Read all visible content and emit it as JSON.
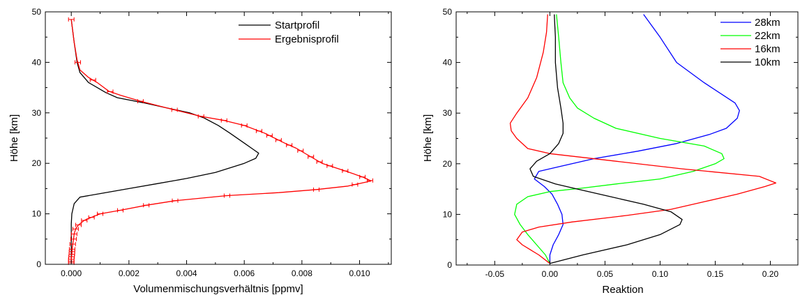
{
  "chart_data": [
    {
      "type": "line",
      "xlabel": "Volumenmischungsverhältnis [ppmv]",
      "ylabel": "Höhe [km]",
      "xlim": [
        -0.0009,
        0.0111
      ],
      "ylim": [
        0,
        50
      ],
      "xticks": [
        "0.000",
        "0.002",
        "0.004",
        "0.006",
        "0.008",
        "0.010"
      ],
      "xtick_values": [
        0,
        0.002,
        0.004,
        0.006,
        0.008,
        0.01
      ],
      "yticks": [
        "0",
        "10",
        "20",
        "30",
        "40",
        "50"
      ],
      "ytick_values": [
        0,
        10,
        20,
        30,
        40,
        50
      ],
      "grid": false,
      "legend_position": "top-right",
      "series": [
        {
          "name": "Startprofil",
          "color": "#000000",
          "points": [
            [
              0.0,
              0.3
            ],
            [
              0.0,
              2
            ],
            [
              0.0,
              5
            ],
            [
              0.0,
              8
            ],
            [
              2e-05,
              10
            ],
            [
              0.0001,
              12
            ],
            [
              0.0003,
              13.3
            ],
            [
              0.001,
              14.0
            ],
            [
              0.002,
              15.0
            ],
            [
              0.003,
              16.0
            ],
            [
              0.004,
              17.0
            ],
            [
              0.005,
              18.2
            ],
            [
              0.006,
              20.0
            ],
            [
              0.0064,
              21.0
            ],
            [
              0.0065,
              22.0
            ],
            [
              0.0063,
              22.8
            ],
            [
              0.006,
              24.0
            ],
            [
              0.0055,
              26.0
            ],
            [
              0.0051,
              27.5
            ],
            [
              0.0046,
              29.0
            ],
            [
              0.0041,
              30.0
            ],
            [
              0.0033,
              31.0
            ],
            [
              0.0025,
              32.0
            ],
            [
              0.0016,
              33.0
            ],
            [
              0.0012,
              34.0
            ],
            [
              0.0009,
              35.0
            ],
            [
              0.0006,
              36.0
            ],
            [
              0.0003,
              38.0
            ],
            [
              0.0002,
              40.0
            ],
            [
              0.0001,
              44.0
            ],
            [
              0.0,
              48.5
            ]
          ]
        },
        {
          "name": "Ergebnisprofil",
          "color": "#ff0000",
          "points": [
            [
              0.0,
              0.3
            ],
            [
              0.0,
              1.0
            ],
            [
              2e-05,
              2.0
            ],
            [
              3e-05,
              3.0
            ],
            [
              5e-05,
              4.0
            ],
            [
              8e-05,
              5.0
            ],
            [
              0.0001,
              6.0
            ],
            [
              0.00015,
              7.0
            ],
            [
              0.00025,
              7.8
            ],
            [
              0.00045,
              8.7
            ],
            [
              0.0007,
              9.3
            ],
            [
              0.001,
              10.0
            ],
            [
              0.0017,
              10.7
            ],
            [
              0.0026,
              11.7
            ],
            [
              0.0036,
              12.6
            ],
            [
              0.0054,
              13.6
            ],
            [
              0.0072,
              14.2
            ],
            [
              0.0085,
              14.8
            ],
            [
              0.0096,
              15.5
            ],
            [
              0.0104,
              16.5
            ],
            [
              0.0101,
              17.3
            ],
            [
              0.0095,
              18.5
            ],
            [
              0.0087,
              20.0
            ],
            [
              0.0084,
              21.0
            ],
            [
              0.0078,
              23.0
            ],
            [
              0.0074,
              24.0
            ],
            [
              0.0067,
              26.0
            ],
            [
              0.006,
              27.5
            ],
            [
              0.0053,
              28.5
            ],
            [
              0.0045,
              29.3
            ],
            [
              0.004,
              30.0
            ],
            [
              0.0033,
              31.0
            ],
            [
              0.0024,
              32.3
            ],
            [
              0.0017,
              33.5
            ],
            [
              0.0013,
              34.3
            ],
            [
              0.0009,
              36.0
            ],
            [
              0.0006,
              37.0
            ],
            [
              0.0003,
              38.5
            ],
            [
              0.0002,
              40.5
            ],
            [
              0.0001,
              44.0
            ],
            [
              0.0,
              48.5
            ]
          ]
        }
      ],
      "error_bar_heights": [
        0.3,
        0.6,
        1.0,
        1.5,
        2.0,
        2.5,
        3.0,
        4.0,
        5.0,
        6.0,
        7.0,
        7.8,
        8.7,
        9.3,
        10.0,
        10.7,
        11.7,
        12.6,
        13.6,
        14.8,
        15.8,
        16.6,
        17.3,
        18.5,
        19.5,
        20.3,
        21.3,
        22.5,
        23.6,
        24.6,
        25.5,
        26.4,
        27.5,
        28.5,
        29.3,
        30.6,
        32.3,
        34.2,
        36.5,
        40.0,
        48.5
      ]
    },
    {
      "type": "line",
      "xlabel": "Reaktion",
      "ylabel": "Höhe [km]",
      "xlim": [
        -0.085,
        0.225
      ],
      "ylim": [
        0,
        50
      ],
      "xticks": [
        "-0.05",
        "0.00",
        "0.05",
        "0.10",
        "0.15",
        "0.20"
      ],
      "xtick_values": [
        -0.05,
        0,
        0.05,
        0.1,
        0.15,
        0.2
      ],
      "yticks": [
        "0",
        "10",
        "20",
        "30",
        "40",
        "50"
      ],
      "ytick_values": [
        0,
        10,
        20,
        30,
        40,
        50
      ],
      "grid": false,
      "legend_position": "top-right",
      "series": [
        {
          "name": "28km",
          "color": "#0000ff",
          "points": [
            [
              0.0,
              0.3
            ],
            [
              0.0,
              2
            ],
            [
              0.003,
              4
            ],
            [
              0.008,
              6
            ],
            [
              0.012,
              8
            ],
            [
              0.011,
              10
            ],
            [
              0.007,
              12
            ],
            [
              0.002,
              14
            ],
            [
              -0.005,
              15.5
            ],
            [
              -0.014,
              17
            ],
            [
              -0.01,
              18.5
            ],
            [
              0.01,
              19.5
            ],
            [
              0.04,
              21
            ],
            [
              0.08,
              22.5
            ],
            [
              0.115,
              24
            ],
            [
              0.145,
              25.8
            ],
            [
              0.16,
              27
            ],
            [
              0.17,
              29
            ],
            [
              0.172,
              30.5
            ],
            [
              0.168,
              32
            ],
            [
              0.14,
              36
            ],
            [
              0.115,
              40
            ],
            [
              0.1,
              45
            ],
            [
              0.085,
              49.5
            ]
          ]
        },
        {
          "name": "22km",
          "color": "#00ff00",
          "points": [
            [
              0.0,
              0.3
            ],
            [
              -0.004,
              2
            ],
            [
              -0.012,
              4
            ],
            [
              -0.02,
              6
            ],
            [
              -0.027,
              8
            ],
            [
              -0.032,
              10
            ],
            [
              -0.03,
              12
            ],
            [
              -0.02,
              13.5
            ],
            [
              0.0,
              14.5
            ],
            [
              0.03,
              15.2
            ],
            [
              0.06,
              16
            ],
            [
              0.1,
              17
            ],
            [
              0.13,
              18.5
            ],
            [
              0.15,
              20
            ],
            [
              0.158,
              21
            ],
            [
              0.156,
              22
            ],
            [
              0.14,
              23.5
            ],
            [
              0.1,
              25
            ],
            [
              0.06,
              27
            ],
            [
              0.04,
              29
            ],
            [
              0.025,
              31
            ],
            [
              0.018,
              33
            ],
            [
              0.012,
              36
            ],
            [
              0.01,
              40
            ],
            [
              0.008,
              45
            ],
            [
              0.006,
              49.5
            ]
          ]
        },
        {
          "name": "16km",
          "color": "#ff0000",
          "points": [
            [
              0.0,
              0.3
            ],
            [
              -0.01,
              2
            ],
            [
              -0.025,
              4
            ],
            [
              -0.03,
              5
            ],
            [
              -0.025,
              6.5
            ],
            [
              -0.01,
              7.5
            ],
            [
              0.02,
              8.5
            ],
            [
              0.07,
              9.8
            ],
            [
              0.11,
              11
            ],
            [
              0.14,
              12.5
            ],
            [
              0.17,
              14
            ],
            [
              0.195,
              15.5
            ],
            [
              0.205,
              16.2
            ],
            [
              0.19,
              17.5
            ],
            [
              0.12,
              19
            ],
            [
              0.06,
              20.5
            ],
            [
              0.0,
              22
            ],
            [
              -0.02,
              23
            ],
            [
              -0.03,
              25
            ],
            [
              -0.035,
              26.5
            ],
            [
              -0.036,
              28
            ],
            [
              -0.03,
              30
            ],
            [
              -0.02,
              33
            ],
            [
              -0.012,
              37
            ],
            [
              -0.006,
              42
            ],
            [
              -0.003,
              46
            ],
            [
              -0.002,
              49.5
            ]
          ]
        },
        {
          "name": "10km",
          "color": "#000000",
          "points": [
            [
              0.0,
              0.3
            ],
            [
              0.03,
              2
            ],
            [
              0.07,
              4
            ],
            [
              0.1,
              6
            ],
            [
              0.118,
              8
            ],
            [
              0.12,
              9
            ],
            [
              0.11,
              10.5
            ],
            [
              0.085,
              12
            ],
            [
              0.055,
              13.5
            ],
            [
              0.025,
              15
            ],
            [
              0.005,
              16
            ],
            [
              -0.015,
              17.5
            ],
            [
              -0.018,
              19
            ],
            [
              -0.012,
              20.5
            ],
            [
              0.0,
              22
            ],
            [
              0.008,
              24
            ],
            [
              0.012,
              26
            ],
            [
              0.012,
              28
            ],
            [
              0.01,
              31
            ],
            [
              0.007,
              35
            ],
            [
              0.005,
              40
            ],
            [
              0.005,
              45
            ],
            [
              0.004,
              49.5
            ]
          ]
        }
      ]
    }
  ]
}
